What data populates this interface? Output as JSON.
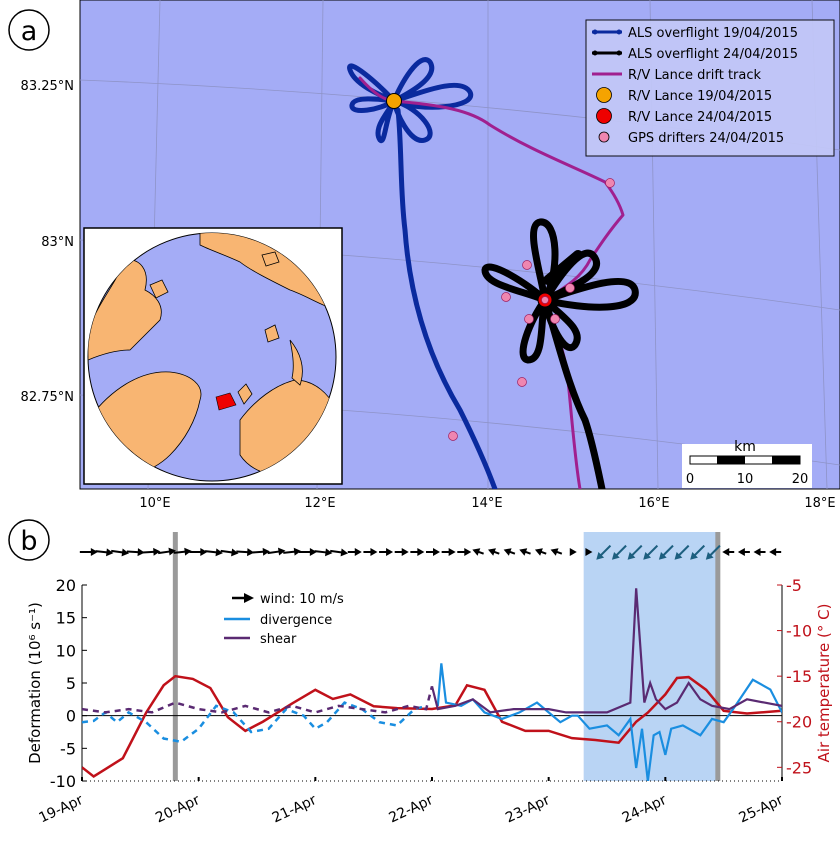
{
  "panel_a": {
    "label": "a",
    "lat_labels": [
      "83.25°N",
      "83°N",
      "82.75°N"
    ],
    "lon_labels": [
      "10°E",
      "12°E",
      "14°E",
      "16°E",
      "18°E"
    ],
    "legend": [
      {
        "label": "ALS overflight 19/04/2015",
        "color": "#0a2a9e",
        "kind": "line-dot"
      },
      {
        "label": "ALS overflight 24/04/2015",
        "color": "#000000",
        "kind": "line-dot"
      },
      {
        "label": "R/V Lance drift track",
        "color": "#a0208f",
        "kind": "line"
      },
      {
        "label": "R/V Lance 19/04/2015",
        "color": "#f5a300",
        "kind": "big-dot"
      },
      {
        "label": "R/V Lance 24/04/2015",
        "color": "#ee0000",
        "kind": "big-dot"
      },
      {
        "label": "GPS drifters 24/04/2015",
        "color": "#ef86b0",
        "kind": "small-dot"
      }
    ],
    "scalebar": {
      "unit": "km",
      "ticks": [
        "0",
        "10",
        "20"
      ]
    },
    "colors": {
      "ocean": "#a4acf6",
      "land": "#f8b572",
      "inset_region": "#ee0000"
    }
  },
  "panel_b": {
    "label": "b",
    "ylabel_left": "Deformation (10⁶ s⁻¹)",
    "ylabel_right": "Air temperature (° C)",
    "legend": [
      {
        "label": "wind: 10 m/s",
        "color": "#000000"
      },
      {
        "label": "divergence",
        "color": "#1a8ee0"
      },
      {
        "label": "shear",
        "color": "#5a2a72"
      }
    ]
  },
  "chart_data": {
    "type": "line",
    "x_tick_labels": [
      "19-Apr",
      "20-Apr",
      "21-Apr",
      "22-Apr",
      "23-Apr",
      "24-Apr",
      "25-Apr"
    ],
    "x_range_days": [
      19,
      25
    ],
    "y_left": {
      "ticks": [
        20,
        15,
        10,
        5,
        0,
        -5,
        -10
      ],
      "range": [
        -10,
        20
      ]
    },
    "y_right": {
      "ticks": [
        -5,
        -10,
        -15,
        -20,
        -25
      ],
      "range": [
        -26.5,
        -5
      ]
    },
    "shaded_interval_days": [
      23.3,
      24.45
    ],
    "vertical_lines_days": [
      19.8,
      24.45
    ],
    "series": [
      {
        "name": "Air temperature",
        "axis": "right",
        "color": "#c0111a",
        "points": [
          [
            19,
            -25
          ],
          [
            19.1,
            -26
          ],
          [
            19.2,
            -25.2
          ],
          [
            19.35,
            -24
          ],
          [
            19.55,
            -19
          ],
          [
            19.7,
            -16
          ],
          [
            19.8,
            -15
          ],
          [
            19.95,
            -15.3
          ],
          [
            20.1,
            -16.3
          ],
          [
            20.25,
            -19.5
          ],
          [
            20.4,
            -21
          ],
          [
            20.55,
            -20
          ],
          [
            20.8,
            -18
          ],
          [
            21.0,
            -16.5
          ],
          [
            21.15,
            -17.5
          ],
          [
            21.3,
            -17.0
          ],
          [
            21.5,
            -18.3
          ],
          [
            21.7,
            -18.5
          ],
          [
            22.0,
            -18.6
          ],
          [
            22.2,
            -18.2
          ],
          [
            22.3,
            -16.0
          ],
          [
            22.45,
            -16.5
          ],
          [
            22.6,
            -20
          ],
          [
            22.8,
            -21
          ],
          [
            23.0,
            -21
          ],
          [
            23.2,
            -21.8
          ],
          [
            23.4,
            -22
          ],
          [
            23.6,
            -22.3
          ],
          [
            23.75,
            -20
          ],
          [
            23.85,
            -19
          ],
          [
            24.0,
            -17
          ],
          [
            24.1,
            -15.2
          ],
          [
            24.2,
            -15.1
          ],
          [
            24.35,
            -16.5
          ],
          [
            24.5,
            -18.8
          ],
          [
            24.7,
            -19.1
          ],
          [
            25,
            -18.8
          ]
        ]
      },
      {
        "name": "divergence",
        "axis": "left",
        "color": "#1a8ee0",
        "dashed_until": 22.0,
        "points": [
          [
            19,
            -1
          ],
          [
            19.1,
            -0.8
          ],
          [
            19.2,
            0.5
          ],
          [
            19.3,
            -1
          ],
          [
            19.4,
            0.5
          ],
          [
            19.55,
            -1
          ],
          [
            19.7,
            -3.5
          ],
          [
            19.85,
            -4
          ],
          [
            20.0,
            -2
          ],
          [
            20.15,
            1.5
          ],
          [
            20.3,
            0.5
          ],
          [
            20.45,
            -2.5
          ],
          [
            20.6,
            -2
          ],
          [
            20.75,
            1
          ],
          [
            20.9,
            0
          ],
          [
            21.0,
            -2
          ],
          [
            21.1,
            -1
          ],
          [
            21.25,
            2
          ],
          [
            21.4,
            1
          ],
          [
            21.55,
            -1
          ],
          [
            21.7,
            -1.5
          ],
          [
            21.85,
            1
          ],
          [
            21.95,
            1.5
          ],
          [
            22.05,
            1.5
          ],
          [
            22.08,
            8
          ],
          [
            22.12,
            2
          ],
          [
            22.25,
            1.5
          ],
          [
            22.35,
            2.5
          ],
          [
            22.45,
            0.5
          ],
          [
            22.6,
            -0.5
          ],
          [
            22.75,
            0.5
          ],
          [
            22.9,
            2
          ],
          [
            23.0,
            0.5
          ],
          [
            23.1,
            -1
          ],
          [
            23.2,
            0
          ],
          [
            23.25,
            0
          ],
          [
            23.35,
            -2
          ],
          [
            23.5,
            -1.5
          ],
          [
            23.6,
            -3
          ],
          [
            23.7,
            -0.5
          ],
          [
            23.75,
            -8
          ],
          [
            23.8,
            -2
          ],
          [
            23.85,
            -10
          ],
          [
            23.9,
            -3
          ],
          [
            23.95,
            -2.5
          ],
          [
            24.0,
            -6
          ],
          [
            24.05,
            -2
          ],
          [
            24.15,
            -1.5
          ],
          [
            24.3,
            -3
          ],
          [
            24.4,
            -0.5
          ],
          [
            24.5,
            -1
          ],
          [
            24.6,
            1.5
          ],
          [
            24.75,
            5.5
          ],
          [
            24.9,
            4
          ],
          [
            25,
            0.5
          ]
        ]
      },
      {
        "name": "shear",
        "axis": "left",
        "color": "#5a2a72",
        "dashed_until": 22.0,
        "points": [
          [
            19,
            1
          ],
          [
            19.2,
            0.5
          ],
          [
            19.4,
            1
          ],
          [
            19.6,
            0.5
          ],
          [
            19.8,
            2
          ],
          [
            20.0,
            1
          ],
          [
            20.2,
            0.5
          ],
          [
            20.4,
            1.5
          ],
          [
            20.6,
            0.5
          ],
          [
            20.8,
            1.5
          ],
          [
            21.0,
            0.5
          ],
          [
            21.2,
            1.5
          ],
          [
            21.4,
            1
          ],
          [
            21.6,
            0.5
          ],
          [
            21.8,
            1.5
          ],
          [
            21.95,
            1
          ],
          [
            22.0,
            4.5
          ],
          [
            22.05,
            1
          ],
          [
            22.2,
            1.5
          ],
          [
            22.35,
            2.5
          ],
          [
            22.5,
            0.5
          ],
          [
            22.7,
            1
          ],
          [
            22.9,
            1
          ],
          [
            23.0,
            1
          ],
          [
            23.15,
            0.5
          ],
          [
            23.3,
            0.5
          ],
          [
            23.5,
            0.5
          ],
          [
            23.7,
            2
          ],
          [
            23.75,
            19.5
          ],
          [
            23.82,
            2
          ],
          [
            23.87,
            5
          ],
          [
            23.92,
            2.5
          ],
          [
            24.0,
            1
          ],
          [
            24.1,
            2
          ],
          [
            24.2,
            5
          ],
          [
            24.3,
            2.5
          ],
          [
            24.4,
            1.5
          ],
          [
            24.55,
            1
          ],
          [
            24.7,
            2.5
          ],
          [
            24.85,
            2
          ],
          [
            25,
            1.5
          ]
        ]
      }
    ]
  }
}
